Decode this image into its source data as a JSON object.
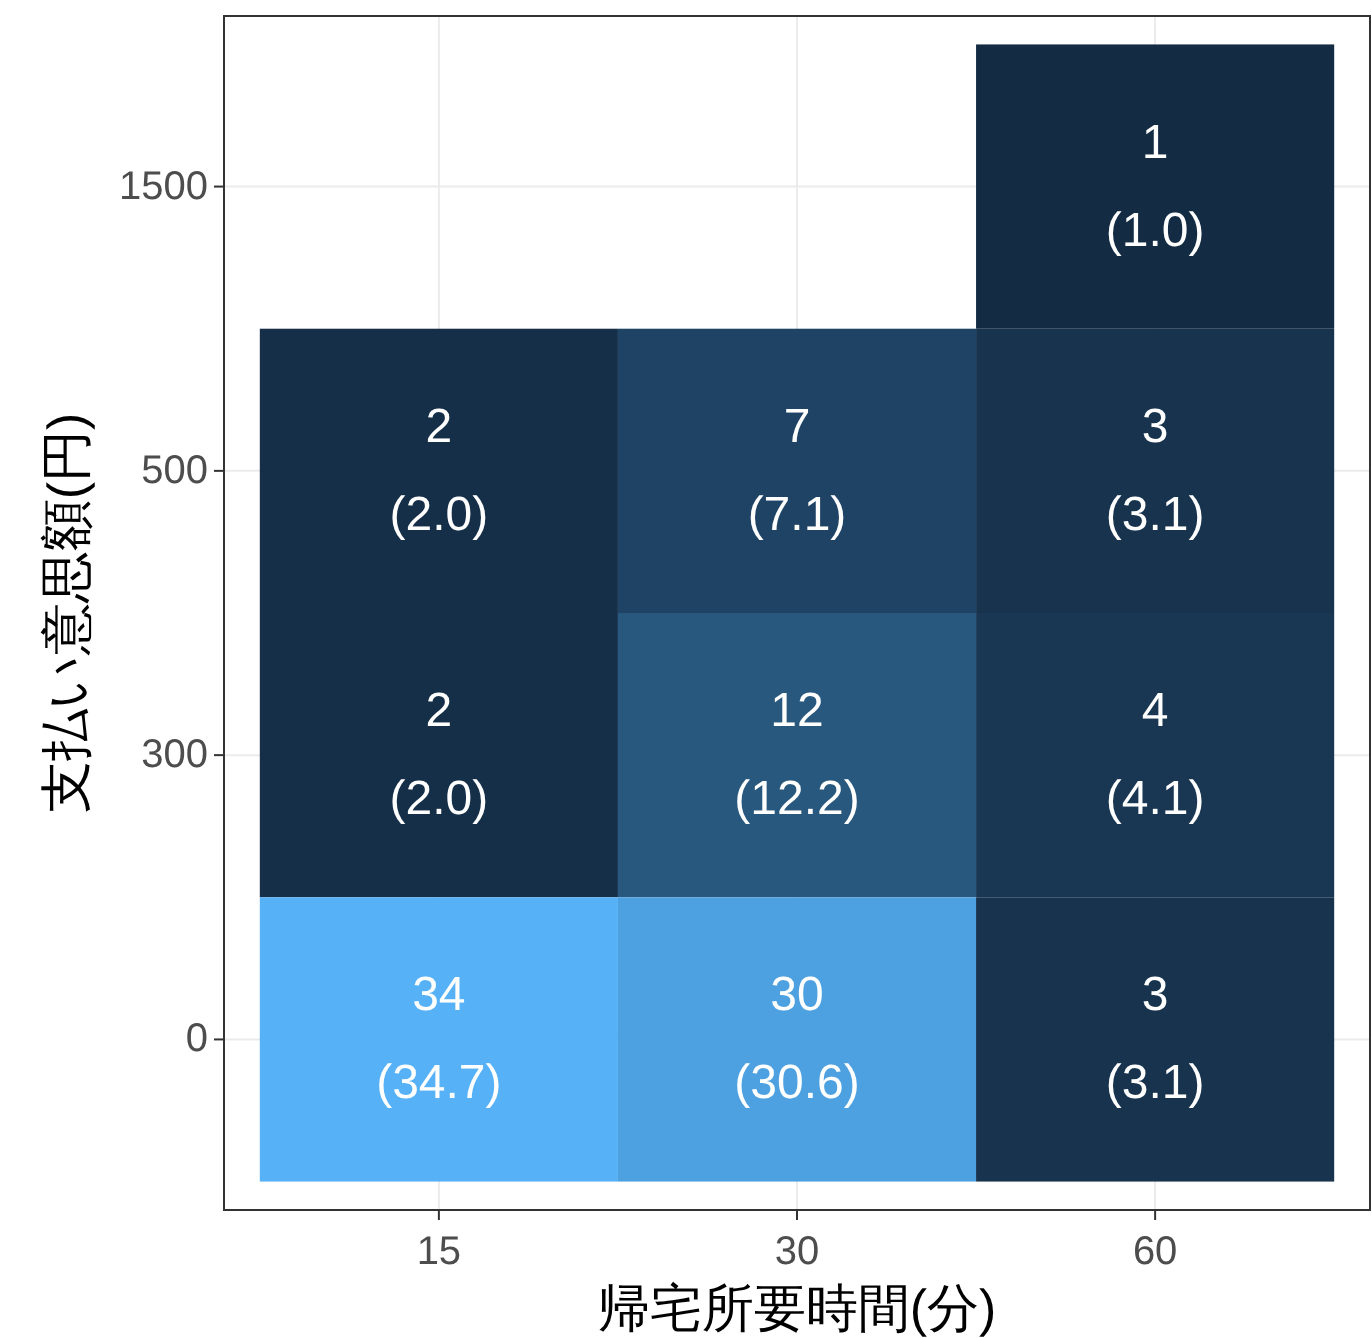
{
  "chart_data": {
    "type": "heatmap",
    "xlabel": "帰宅所要時間(分)",
    "ylabel": "支払い意思額(円)",
    "categories": [
      "15",
      "30",
      "60"
    ],
    "y_categories": [
      "1500",
      "500",
      "300",
      "0"
    ],
    "cells": [
      [
        null,
        null,
        1
      ],
      [
        2,
        7,
        3
      ],
      [
        2,
        12,
        4
      ],
      [
        34,
        30,
        3
      ]
    ],
    "data_labels": true,
    "annotations": [
      "(1.0)",
      "(2.0)",
      "(7.1)",
      "(3.1)",
      "(2.0)",
      "(12.2)",
      "(4.1)",
      "(34.7)",
      "(30.6)",
      "(3.1)"
    ],
    "grid": true
  }
}
